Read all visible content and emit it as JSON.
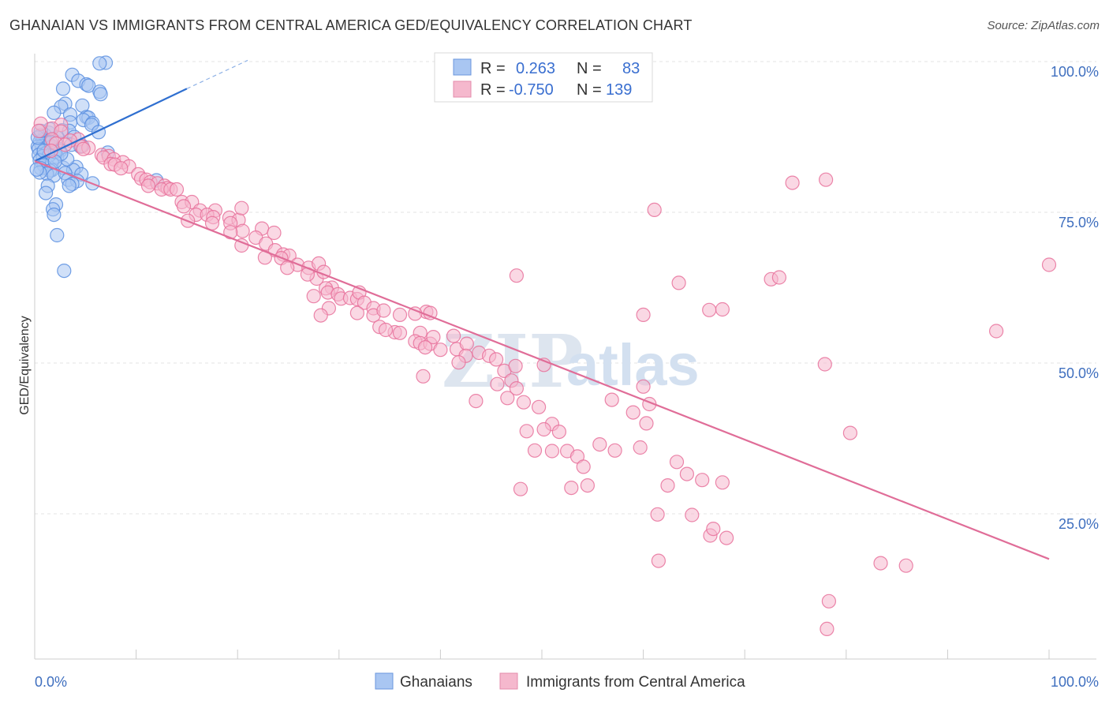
{
  "title": "GHANAIAN VS IMMIGRANTS FROM CENTRAL AMERICA GED/EQUIVALENCY CORRELATION CHART",
  "source": "Source: ZipAtlas.com",
  "watermark": {
    "zip": "ZIP",
    "atlas": "atlas"
  },
  "chart_data": {
    "type": "scatter",
    "ylabel": "GED/Equivalency",
    "x_tick_labels": [
      "0.0%",
      "100.0%"
    ],
    "y_tick_labels": [
      "100.0%",
      "75.0%",
      "50.0%",
      "25.0%"
    ],
    "y_ticks": [
      100,
      75,
      50,
      25
    ],
    "xlim": [
      0,
      100
    ],
    "ylim": [
      2,
      102
    ],
    "grid": true,
    "legend_placement": "top-center",
    "stats": [
      {
        "r_label": "R =",
        "r": "0.263",
        "n_label": "N =",
        "n": "83"
      },
      {
        "r_label": "R =",
        "r": "-0.750",
        "n_label": "N =",
        "n": "139"
      }
    ],
    "series": [
      {
        "name": "Ghanaians",
        "color": "#5b8fe0",
        "fill": "#a9c6f2",
        "trend": {
          "x": [
            0,
            15
          ],
          "y": [
            83.5,
            95.5
          ],
          "dash_to": [
            21,
            100.2
          ]
        },
        "points": [
          [
            7,
            99.8
          ],
          [
            6.4,
            99.7
          ],
          [
            3.7,
            97.8
          ],
          [
            4.3,
            96.8
          ],
          [
            5.1,
            96.2
          ],
          [
            5.3,
            96.0
          ],
          [
            2.8,
            95.5
          ],
          [
            6.4,
            95.0
          ],
          [
            6.5,
            94.6
          ],
          [
            3.0,
            93.0
          ],
          [
            2.6,
            92.5
          ],
          [
            4.7,
            92.7
          ],
          [
            3.5,
            91.2
          ],
          [
            1.9,
            91.5
          ],
          [
            5.1,
            90.8
          ],
          [
            5.3,
            90.7
          ],
          [
            4.8,
            90.3
          ],
          [
            3.5,
            89.9
          ],
          [
            5.7,
            89.8
          ],
          [
            5.6,
            89.5
          ],
          [
            2.7,
            88.6
          ],
          [
            3.4,
            88.5
          ],
          [
            6.3,
            88.3
          ],
          [
            1.4,
            88.2
          ],
          [
            1.0,
            87.8
          ],
          [
            3.9,
            87.5
          ],
          [
            2.2,
            87.4
          ],
          [
            0.6,
            87.8
          ],
          [
            0.8,
            87.0
          ],
          [
            1.3,
            86.5
          ],
          [
            0.5,
            86.7
          ],
          [
            0.7,
            86.0
          ],
          [
            4.7,
            86.0
          ],
          [
            0.3,
            85.9
          ],
          [
            1.7,
            85.9
          ],
          [
            0.4,
            85.5
          ],
          [
            2.4,
            85.5
          ],
          [
            2.5,
            85.2
          ],
          [
            1.1,
            84.8
          ],
          [
            0.4,
            84.5
          ],
          [
            7.2,
            84.9
          ],
          [
            0.8,
            84.3
          ],
          [
            2.2,
            84.2
          ],
          [
            1.4,
            84.4
          ],
          [
            0.5,
            83.6
          ],
          [
            1.7,
            83.2
          ],
          [
            0.9,
            82.8
          ],
          [
            4.1,
            82.5
          ],
          [
            2.8,
            82.4
          ],
          [
            1.7,
            82.0
          ],
          [
            0.6,
            82.3
          ],
          [
            3.8,
            82.0
          ],
          [
            1.5,
            81.9
          ],
          [
            1.2,
            81.4
          ],
          [
            0.5,
            81.6
          ],
          [
            4.6,
            81.3
          ],
          [
            0.2,
            82.1
          ],
          [
            1.9,
            81.1
          ],
          [
            3.0,
            81.5
          ],
          [
            3.3,
            80.4
          ],
          [
            4.2,
            80.2
          ],
          [
            12,
            80.3
          ],
          [
            5.7,
            79.8
          ],
          [
            3.7,
            79.7
          ],
          [
            3.4,
            79.4
          ],
          [
            1.3,
            79.4
          ],
          [
            1.1,
            78.2
          ],
          [
            2.1,
            76.3
          ],
          [
            1.8,
            75.5
          ],
          [
            1.9,
            74.6
          ],
          [
            2.2,
            71.2
          ],
          [
            2.9,
            65.3
          ],
          [
            2.0,
            85.0
          ],
          [
            3.2,
            83.8
          ],
          [
            0.3,
            87.4
          ],
          [
            1.6,
            86.6
          ],
          [
            0.9,
            85.2
          ],
          [
            2.6,
            84.7
          ],
          [
            4.5,
            85.9
          ],
          [
            1.5,
            88.8
          ],
          [
            2.0,
            83.4
          ],
          [
            3.6,
            86.2
          ],
          [
            0.6,
            88.5
          ]
        ]
      },
      {
        "name": "Immigrants from Central America",
        "color": "#e8719b",
        "fill": "#f5b8cd",
        "trend": {
          "x": [
            0,
            100
          ],
          "y": [
            83.5,
            17.5
          ]
        },
        "points": [
          [
            54,
            99.6
          ],
          [
            53.8,
            99.6
          ],
          [
            2.6,
            89.5
          ],
          [
            1.7,
            88.9
          ],
          [
            0.6,
            89.7
          ],
          [
            0.4,
            88.5
          ],
          [
            2.6,
            88.4
          ],
          [
            4.3,
            87.1
          ],
          [
            1.7,
            87.1
          ],
          [
            3.5,
            86.9
          ],
          [
            2.1,
            86.4
          ],
          [
            3.0,
            86.2
          ],
          [
            4.6,
            85.9
          ],
          [
            5.3,
            85.7
          ],
          [
            4.8,
            85.5
          ],
          [
            1.6,
            85.2
          ],
          [
            6.6,
            84.5
          ],
          [
            7.3,
            84.3
          ],
          [
            6.8,
            84.1
          ],
          [
            7.8,
            83.8
          ],
          [
            8.7,
            83.3
          ],
          [
            7.5,
            83.0
          ],
          [
            7.9,
            82.9
          ],
          [
            9.3,
            82.6
          ],
          [
            8.5,
            82.3
          ],
          [
            10.2,
            81.3
          ],
          [
            10.5,
            80.6
          ],
          [
            11.0,
            80.4
          ],
          [
            11.4,
            80.0
          ],
          [
            12.1,
            79.8
          ],
          [
            11.2,
            79.4
          ],
          [
            12.8,
            79.4
          ],
          [
            13.1,
            79.0
          ],
          [
            12.5,
            78.8
          ],
          [
            13.4,
            78.8
          ],
          [
            14.0,
            78.8
          ],
          [
            14.5,
            76.7
          ],
          [
            15.5,
            76.7
          ],
          [
            14.7,
            76.0
          ],
          [
            16.3,
            75.3
          ],
          [
            17.8,
            75.3
          ],
          [
            15.9,
            74.6
          ],
          [
            17.0,
            74.6
          ],
          [
            17.6,
            74.2
          ],
          [
            19.2,
            74.1
          ],
          [
            15.1,
            73.6
          ],
          [
            17.5,
            73.2
          ],
          [
            20.1,
            73.7
          ],
          [
            20.4,
            75.7
          ],
          [
            19.3,
            73.2
          ],
          [
            20.5,
            71.9
          ],
          [
            22.4,
            72.3
          ],
          [
            23.6,
            71.6
          ],
          [
            19.3,
            71.7
          ],
          [
            21.8,
            70.8
          ],
          [
            20.4,
            69.5
          ],
          [
            22.8,
            69.8
          ],
          [
            23.7,
            68.7
          ],
          [
            24.5,
            68.0
          ],
          [
            25.1,
            67.8
          ],
          [
            22.7,
            67.5
          ],
          [
            24.3,
            67.4
          ],
          [
            25.9,
            66.3
          ],
          [
            27.0,
            65.8
          ],
          [
            28.0,
            66.5
          ],
          [
            27.8,
            64.0
          ],
          [
            24.9,
            65.8
          ],
          [
            26.9,
            64.7
          ],
          [
            28.5,
            65.1
          ],
          [
            29.3,
            62.5
          ],
          [
            28.7,
            62.4
          ],
          [
            27.5,
            61.1
          ],
          [
            28.9,
            61.7
          ],
          [
            29.9,
            61.4
          ],
          [
            30.2,
            60.7
          ],
          [
            31.1,
            60.8
          ],
          [
            31.8,
            60.6
          ],
          [
            32.0,
            61.7
          ],
          [
            32.5,
            60.0
          ],
          [
            33.4,
            59.1
          ],
          [
            29.0,
            59.1
          ],
          [
            31.8,
            58.3
          ],
          [
            33.4,
            57.9
          ],
          [
            34.4,
            58.7
          ],
          [
            36.0,
            58.0
          ],
          [
            38.6,
            58.5
          ],
          [
            39.0,
            58.3
          ],
          [
            37.5,
            58.2
          ],
          [
            34.0,
            56.0
          ],
          [
            35.5,
            55.1
          ],
          [
            34.6,
            55.5
          ],
          [
            36.0,
            55.0
          ],
          [
            38.0,
            55.0
          ],
          [
            37.5,
            53.6
          ],
          [
            38.0,
            53.3
          ],
          [
            39.0,
            53.2
          ],
          [
            39.3,
            54.3
          ],
          [
            40.0,
            52.2
          ],
          [
            41.3,
            54.5
          ],
          [
            38.5,
            52.6
          ],
          [
            41.6,
            52.3
          ],
          [
            42.6,
            53.2
          ],
          [
            43.8,
            51.7
          ],
          [
            42.5,
            51.2
          ],
          [
            41.8,
            50.1
          ],
          [
            44.8,
            51.2
          ],
          [
            45.5,
            50.6
          ],
          [
            46.3,
            48.7
          ],
          [
            47.4,
            49.5
          ],
          [
            47.0,
            47.1
          ],
          [
            50.2,
            49.7
          ],
          [
            45.6,
            46.5
          ],
          [
            47.5,
            45.8
          ],
          [
            46.6,
            44.2
          ],
          [
            48.2,
            43.5
          ],
          [
            49.7,
            42.7
          ],
          [
            51.0,
            39.9
          ],
          [
            50.2,
            39.0
          ],
          [
            51.7,
            38.6
          ],
          [
            48.5,
            38.7
          ],
          [
            49.3,
            35.5
          ],
          [
            51.0,
            35.4
          ],
          [
            52.5,
            35.4
          ],
          [
            53.5,
            34.5
          ],
          [
            54.1,
            32.8
          ],
          [
            55.7,
            36.5
          ],
          [
            57.2,
            35.5
          ],
          [
            59.0,
            41.8
          ],
          [
            60.3,
            40.0
          ],
          [
            59.7,
            36.0
          ],
          [
            60.0,
            46.1
          ],
          [
            60.6,
            43.2
          ],
          [
            63.3,
            33.6
          ],
          [
            64.3,
            31.6
          ],
          [
            65.8,
            30.6
          ],
          [
            67.8,
            30.2
          ],
          [
            62.4,
            29.7
          ],
          [
            54.5,
            29.7
          ],
          [
            52.9,
            29.3
          ],
          [
            47.9,
            29.1
          ],
          [
            61.4,
            24.9
          ],
          [
            64.8,
            24.8
          ],
          [
            61.5,
            17.2
          ],
          [
            66.6,
            21.4
          ],
          [
            66.9,
            22.5
          ],
          [
            68.2,
            21.0
          ],
          [
            77.9,
            49.8
          ],
          [
            78.3,
            10.5
          ],
          [
            78.1,
            5.9
          ],
          [
            83.4,
            16.8
          ],
          [
            85.9,
            16.4
          ],
          [
            80.4,
            38.4
          ],
          [
            67.8,
            58.9
          ],
          [
            72.6,
            63.9
          ],
          [
            73.4,
            64.2
          ],
          [
            63.5,
            63.3
          ],
          [
            78.0,
            80.4
          ],
          [
            74.7,
            79.9
          ],
          [
            61.1,
            75.4
          ],
          [
            66.5,
            58.8
          ],
          [
            94.8,
            55.3
          ],
          [
            100.0,
            66.3
          ],
          [
            38.3,
            47.8
          ],
          [
            43.5,
            43.7
          ],
          [
            56.9,
            43.9
          ],
          [
            60.0,
            58.0
          ],
          [
            47.5,
            64.5
          ],
          [
            28.2,
            57.9
          ]
        ]
      }
    ]
  },
  "bottom_legend": [
    {
      "label": "Ghanaians"
    },
    {
      "label": "Immigrants from Central America"
    }
  ]
}
